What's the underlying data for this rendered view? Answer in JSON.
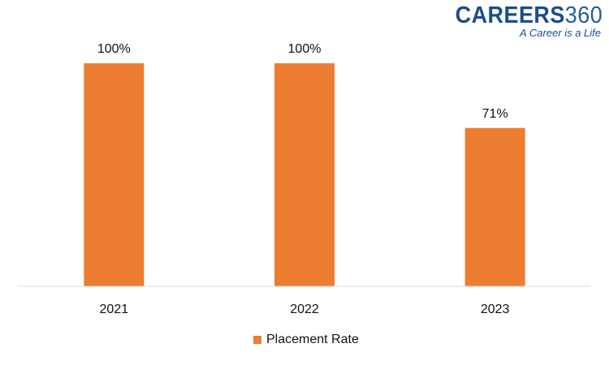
{
  "brand": {
    "logo_text": "CAREERS",
    "logo_number": "360",
    "tagline": "A Career is a Life",
    "colors": {
      "logo": "#1b4d8c"
    }
  },
  "chart_data": {
    "type": "bar",
    "categories": [
      "2021",
      "2022",
      "2023"
    ],
    "series": [
      {
        "name": "Placement Rate",
        "values": [
          100,
          100,
          71
        ],
        "color": "#ed7d31"
      }
    ],
    "data_labels": [
      "100%",
      "100%",
      "71%"
    ],
    "title": "",
    "xlabel": "",
    "ylabel": "",
    "ylim": [
      0,
      100
    ],
    "grid": false,
    "legend": "bottom",
    "y_axis_visible": false
  }
}
